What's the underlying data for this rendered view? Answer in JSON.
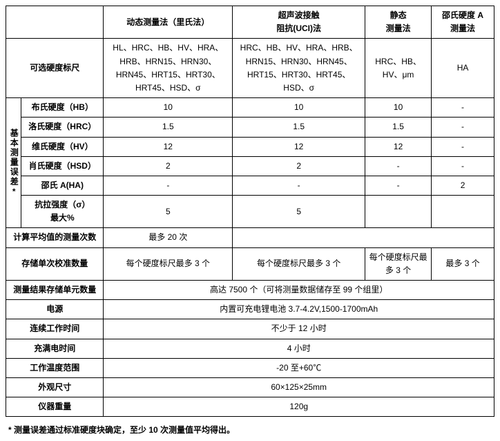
{
  "headers": {
    "col1": "动态测量法（里氏法）",
    "col2": "超声波接触\n阻抗(UCI)法",
    "col3": "静态\n测量法",
    "col4": "邵氏硬度 A\n测量法"
  },
  "sideGroupLabel": "基本测量误差*",
  "rows": {
    "scales": {
      "label": "可选硬度标尺",
      "c1": "HL、HRC、HB、HV、HRA、HRB、HRN15、HRN30、HRN45、HRT15、HRT30、HRT45、HSD、σ",
      "c2": "HRC、HB、HV、HRA、HRB、HRN15、HRN30、HRN45、HRT15、HRT30、HRT45、HSD、σ",
      "c3": "HRC、HB、HV、μm",
      "c4": "HA"
    },
    "hb": {
      "label": "布氏硬度（HB）",
      "c1": "10",
      "c2": "10",
      "c3": "10",
      "c4": "-"
    },
    "hrc": {
      "label": "洛氏硬度（HRC）",
      "c1": "1.5",
      "c2": "1.5",
      "c3": "1.5",
      "c4": "-"
    },
    "hv": {
      "label": "维氏硬度（HV）",
      "c1": "12",
      "c2": "12",
      "c3": "12",
      "c4": "-"
    },
    "hsd": {
      "label": "肖氏硬度（HSD）",
      "c1": "2",
      "c2": "2",
      "c3": "-",
      "c4": "-"
    },
    "ha": {
      "label": "邵氏 A(HA)",
      "c1": "-",
      "c2": "-",
      "c3": "-",
      "c4": "2"
    },
    "sigma": {
      "label": "抗拉强度（σ）\n最大%",
      "c1": "5",
      "c2": "5",
      "c3": "",
      "c4": ""
    },
    "avgCount": {
      "label": "计算平均值的测量次数",
      "c1": "最多 20 次"
    },
    "calibStore": {
      "label": "存储单次校准数量",
      "c1": "每个硬度标尺最多 3 个",
      "c2": "每个硬度标尺最多 3 个",
      "c3": "每个硬度标尺最多 3 个",
      "c4": "最多 3 个"
    },
    "resultStore": {
      "label": "测量结果存储单元数量",
      "val": "高达 7500 个（可将测量数据储存至 99 个组里）"
    },
    "power": {
      "label": "电源",
      "val": "内置可充电锂电池 3.7-4.2V,1500-1700mAh"
    },
    "runtime": {
      "label": "连续工作时间",
      "val": "不少于 12 小时"
    },
    "charge": {
      "label": "充满电时间",
      "val": "4 小时"
    },
    "temp": {
      "label": "工作温度范围",
      "val": "-20 至+60℃"
    },
    "size": {
      "label": "外观尺寸",
      "val": "60×125×25mm"
    },
    "weight": {
      "label": "仪器重量",
      "val": "120g"
    }
  },
  "footnote": "* 测量误差通过标准硬度块确定，至少 10 次测量值平均得出。"
}
